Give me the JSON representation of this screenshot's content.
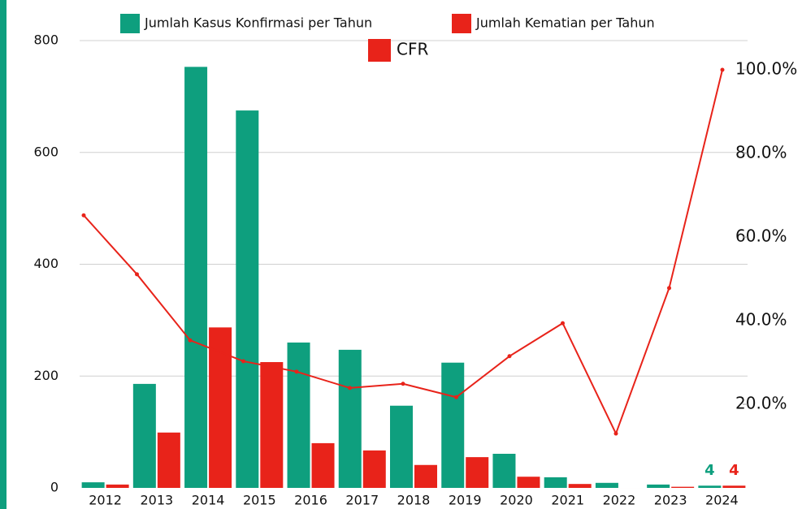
{
  "chart_data": {
    "type": "bar",
    "categories": [
      "2012",
      "2013",
      "2014",
      "2015",
      "2016",
      "2017",
      "2018",
      "2019",
      "2020",
      "2021",
      "2022",
      "2023",
      "2024"
    ],
    "series": [
      {
        "name": "Jumlah Kasus Konfirmasi per Tahun",
        "color": "#0e9f7e",
        "values": [
          10,
          186,
          753,
          675,
          260,
          247,
          147,
          224,
          61,
          19,
          9,
          6,
          4
        ]
      },
      {
        "name": "Jumlah Kematian per Tahun",
        "color": "#e8231a",
        "values": [
          6,
          99,
          287,
          225,
          80,
          67,
          41,
          55,
          20,
          7,
          0,
          2,
          4
        ]
      },
      {
        "name": "CFR",
        "color": "#e8231a",
        "type": "line",
        "axis": "y2",
        "values": [
          65.2,
          51.1,
          35.3,
          30.3,
          27.8,
          23.9,
          24.9,
          21.7,
          31.5,
          39.4,
          13.0,
          47.8,
          100
        ]
      }
    ],
    "ylim": [
      0,
      800
    ],
    "yticks": [
      0,
      200,
      400,
      600,
      800
    ],
    "y2lim": [
      0,
      100
    ],
    "y2ticks": [
      {
        "value": 20,
        "label": "20.0%"
      },
      {
        "value": 40,
        "label": "40.0%"
      },
      {
        "value": 60,
        "label": "60.0%"
      },
      {
        "value": 80,
        "label": "80.0%"
      },
      {
        "value": 100,
        "label": "100.0%"
      }
    ],
    "grid": true
  }
}
